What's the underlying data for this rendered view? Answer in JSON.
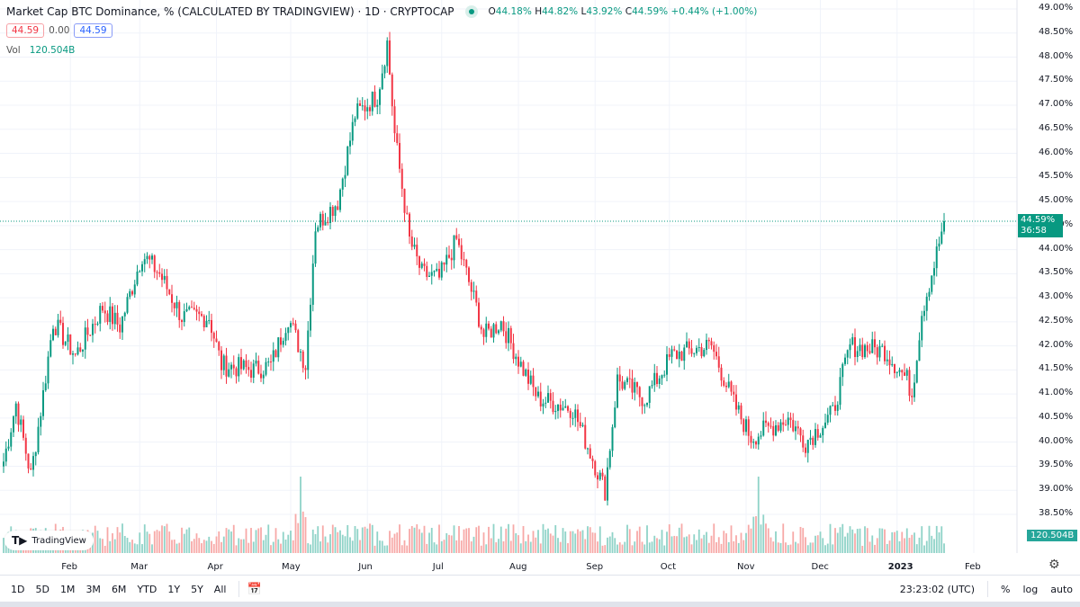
{
  "header": {
    "title": "Market Cap BTC Dominance, % (CALCULATED BY TRADINGVIEW) · 1D · CRYPTOCAP",
    "ohlc": {
      "o_label": "O",
      "o": "44.18%",
      "h_label": "H",
      "h": "44.82%",
      "l_label": "L",
      "l": "43.92%",
      "c_label": "C",
      "c": "44.59%",
      "change": "+0.44% (+1.00%)"
    },
    "sell": "44.59",
    "spread": "0.00",
    "buy": "44.59",
    "vol_label": "Vol",
    "vol_value": "120.504B"
  },
  "logo": {
    "text": "TradingView"
  },
  "price_tag": {
    "price": "44.59%",
    "countdown": "36:58"
  },
  "volume_tag": "120.504B",
  "toolbar": {
    "timeframes": [
      "1D",
      "5D",
      "1M",
      "3M",
      "6M",
      "YTD",
      "1Y",
      "5Y",
      "All"
    ],
    "time": "23:23:02 (UTC)",
    "percent": "%",
    "log": "log",
    "auto": "auto"
  },
  "colors": {
    "up": "#089981",
    "down": "#f23645",
    "vol_up": "#8fd3c8",
    "vol_down": "#f7a9a7"
  },
  "chart_data": {
    "type": "candlestick",
    "start_date": "2022-01-06",
    "ylim": [
      38.3,
      49.1
    ],
    "y_ticks": [
      "49.00%",
      "48.50%",
      "48.00%",
      "47.50%",
      "47.00%",
      "46.50%",
      "46.00%",
      "45.50%",
      "45.00%",
      "44.50%",
      "44.00%",
      "43.50%",
      "43.00%",
      "42.50%",
      "42.00%",
      "41.50%",
      "41.00%",
      "40.50%",
      "40.00%",
      "39.50%",
      "39.00%",
      "38.50%"
    ],
    "x_ticks": [
      {
        "label": "Feb",
        "day": 27
      },
      {
        "label": "Mar",
        "day": 55
      },
      {
        "label": "Apr",
        "day": 86
      },
      {
        "label": "May",
        "day": 116
      },
      {
        "label": "Jun",
        "day": 147
      },
      {
        "label": "Jul",
        "day": 177
      },
      {
        "label": "Aug",
        "day": 208
      },
      {
        "label": "Sep",
        "day": 239
      },
      {
        "label": "Oct",
        "day": 269
      },
      {
        "label": "Nov",
        "day": 300
      },
      {
        "label": "Dec",
        "day": 330
      },
      {
        "label": "2023",
        "day": 361
      },
      {
        "label": "Feb",
        "day": 392
      }
    ],
    "key_days": [
      0,
      5,
      11,
      16,
      20,
      29,
      40,
      47,
      56,
      63,
      72,
      83,
      88,
      101,
      108,
      115,
      122,
      126,
      135,
      142,
      151,
      155,
      158,
      164,
      169,
      176,
      183,
      191,
      194,
      201,
      209,
      216,
      230,
      243,
      248,
      259,
      270,
      277,
      286,
      295,
      302,
      317,
      324,
      335,
      342,
      356,
      365,
      367,
      371,
      376,
      380
    ],
    "key_close": [
      39.6,
      40.8,
      39.3,
      41.0,
      42.5,
      41.8,
      42.8,
      42.4,
      43.9,
      43.5,
      42.6,
      42.6,
      41.6,
      41.5,
      41.6,
      42.6,
      41.6,
      44.5,
      45.0,
      46.8,
      47.2,
      48.3,
      46.4,
      44.2,
      43.5,
      43.4,
      44.2,
      42.8,
      42.2,
      42.5,
      41.6,
      40.9,
      40.7,
      39.0,
      41.3,
      40.9,
      41.8,
      41.9,
      42.0,
      40.8,
      40.1,
      40.5,
      40.0,
      40.6,
      42.0,
      41.9,
      41.3,
      41.0,
      42.7,
      43.7,
      44.59
    ],
    "volume_spikes": [
      {
        "day": 120,
        "volume": "high"
      },
      {
        "day": 305,
        "volume": "high"
      }
    ],
    "last_volume": "120.504B"
  }
}
